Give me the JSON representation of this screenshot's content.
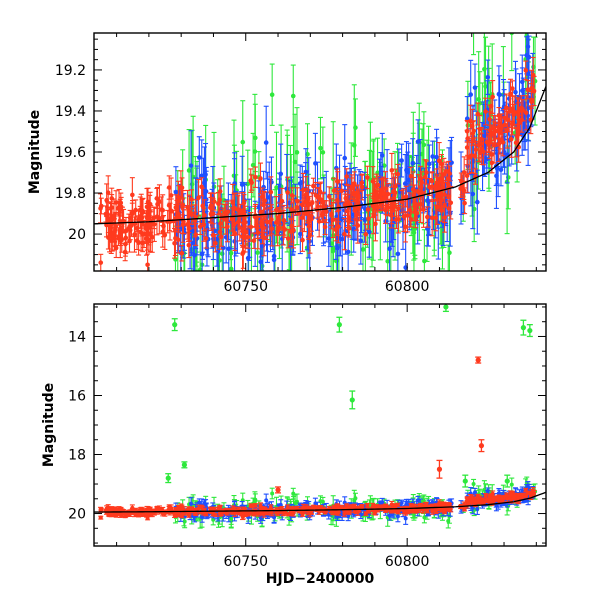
{
  "chart_data": [
    {
      "type": "scatter",
      "title": "",
      "xlabel": "",
      "ylabel": "Magnitude",
      "xlim": [
        60703,
        60843
      ],
      "ylim": [
        20.18,
        19.02
      ],
      "y_inverted": true,
      "x_ticks": [
        60750,
        60800
      ],
      "y_ticks": [
        19.2,
        19.4,
        19.6,
        19.8,
        20
      ],
      "x_tick_labels": [
        "60750",
        "60800"
      ],
      "y_tick_labels": [
        "19.2",
        "19.4",
        "19.6",
        "19.8",
        "20"
      ],
      "grid": false,
      "legend": "none",
      "series": [
        {
          "color": "#ff3a1e",
          "marker": "circle with error bar",
          "x_range": [
            60705,
            60840
          ],
          "typical_mag": [
            19.75,
            19.98
          ],
          "typical_err": 0.06
        },
        {
          "color": "#1e4fff",
          "marker": "circle with error bar",
          "x_range": [
            60728,
            60840
          ],
          "typical_mag": [
            19.6,
            20.1
          ],
          "typical_err": 0.12
        },
        {
          "color": "#2ee83c",
          "marker": "circle with error bar",
          "x_range": [
            60728,
            60840
          ],
          "typical_mag": [
            19.4,
            20.1
          ],
          "typical_err": 0.2
        }
      ],
      "trend_curve": {
        "color": "#000000",
        "x": [
          60703,
          60720,
          60740,
          60760,
          60780,
          60800,
          60815,
          60825,
          60833,
          60838,
          60843
        ],
        "y": [
          19.95,
          19.94,
          19.92,
          19.9,
          19.87,
          19.83,
          19.77,
          19.7,
          19.6,
          19.48,
          19.28
        ]
      }
    },
    {
      "type": "scatter",
      "title": "",
      "xlabel": "HJD−2400000",
      "ylabel": "Magnitude",
      "xlim": [
        60703,
        60843
      ],
      "ylim": [
        21.1,
        12.9
      ],
      "y_inverted": true,
      "x_ticks": [
        60750,
        60800
      ],
      "y_ticks": [
        14,
        16,
        18,
        20
      ],
      "x_tick_labels": [
        "60750",
        "60800"
      ],
      "y_tick_labels": [
        "14",
        "16",
        "18",
        "20"
      ],
      "grid": false,
      "legend": "none",
      "outliers": [
        {
          "x": 60728,
          "y": 13.6,
          "err": 0.2,
          "color": "#2ee83c"
        },
        {
          "x": 60779,
          "y": 13.6,
          "err": 0.25,
          "color": "#2ee83c"
        },
        {
          "x": 60783,
          "y": 16.15,
          "err": 0.3,
          "color": "#2ee83c"
        },
        {
          "x": 60812,
          "y": 13.0,
          "err": 0.15,
          "color": "#2ee83c"
        },
        {
          "x": 60836,
          "y": 13.7,
          "err": 0.25,
          "color": "#2ee83c"
        },
        {
          "x": 60838,
          "y": 13.8,
          "err": 0.2,
          "color": "#2ee83c"
        },
        {
          "x": 60731,
          "y": 18.35,
          "err": 0.1,
          "color": "#2ee83c"
        },
        {
          "x": 60822,
          "y": 14.8,
          "err": 0.1,
          "color": "#ff3a1e"
        },
        {
          "x": 60823,
          "y": 17.7,
          "err": 0.2,
          "color": "#ff3a1e"
        },
        {
          "x": 60760,
          "y": 19.2,
          "err": 0.1,
          "color": "#ff3a1e"
        },
        {
          "x": 60810,
          "y": 18.5,
          "err": 0.3,
          "color": "#ff3a1e"
        },
        {
          "x": 60831,
          "y": 18.9,
          "err": 0.2,
          "color": "#2ee83c"
        },
        {
          "x": 60726,
          "y": 18.8,
          "err": 0.15,
          "color": "#2ee83c"
        },
        {
          "x": 60818,
          "y": 18.9,
          "err": 0.2,
          "color": "#2ee83c"
        }
      ],
      "trend_curve": {
        "color": "#000000",
        "x": [
          60703,
          60720,
          60740,
          60760,
          60780,
          60800,
          60815,
          60825,
          60833,
          60838,
          60843
        ],
        "y": [
          19.95,
          19.94,
          19.92,
          19.9,
          19.87,
          19.83,
          19.77,
          19.7,
          19.6,
          19.48,
          19.28
        ]
      }
    }
  ]
}
